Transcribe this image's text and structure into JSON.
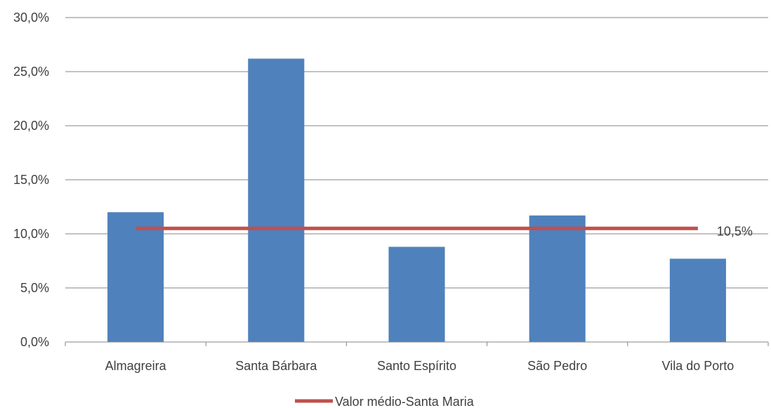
{
  "chart_data": {
    "type": "bar",
    "categories": [
      "Almagreira",
      "Santa Bárbara",
      "Santo Espírito",
      "São Pedro",
      "Vila do Porto"
    ],
    "values": [
      12.0,
      26.2,
      8.8,
      11.7,
      7.7
    ],
    "reference_line": {
      "name": "Valor médio-Santa Maria",
      "value": 10.5,
      "label": "10,5%"
    },
    "title": "",
    "xlabel": "",
    "ylabel": "",
    "ylim": [
      0,
      30
    ],
    "yticks": [
      0,
      5,
      10,
      15,
      20,
      25,
      30
    ],
    "ytick_labels": [
      "0,0%",
      "5,0%",
      "10,0%",
      "15,0%",
      "20,0%",
      "25,0%",
      "30,0%"
    ],
    "grid": true,
    "legend_position": "bottom",
    "bar_color": "#4f81bd",
    "line_color": "#c0504d"
  }
}
